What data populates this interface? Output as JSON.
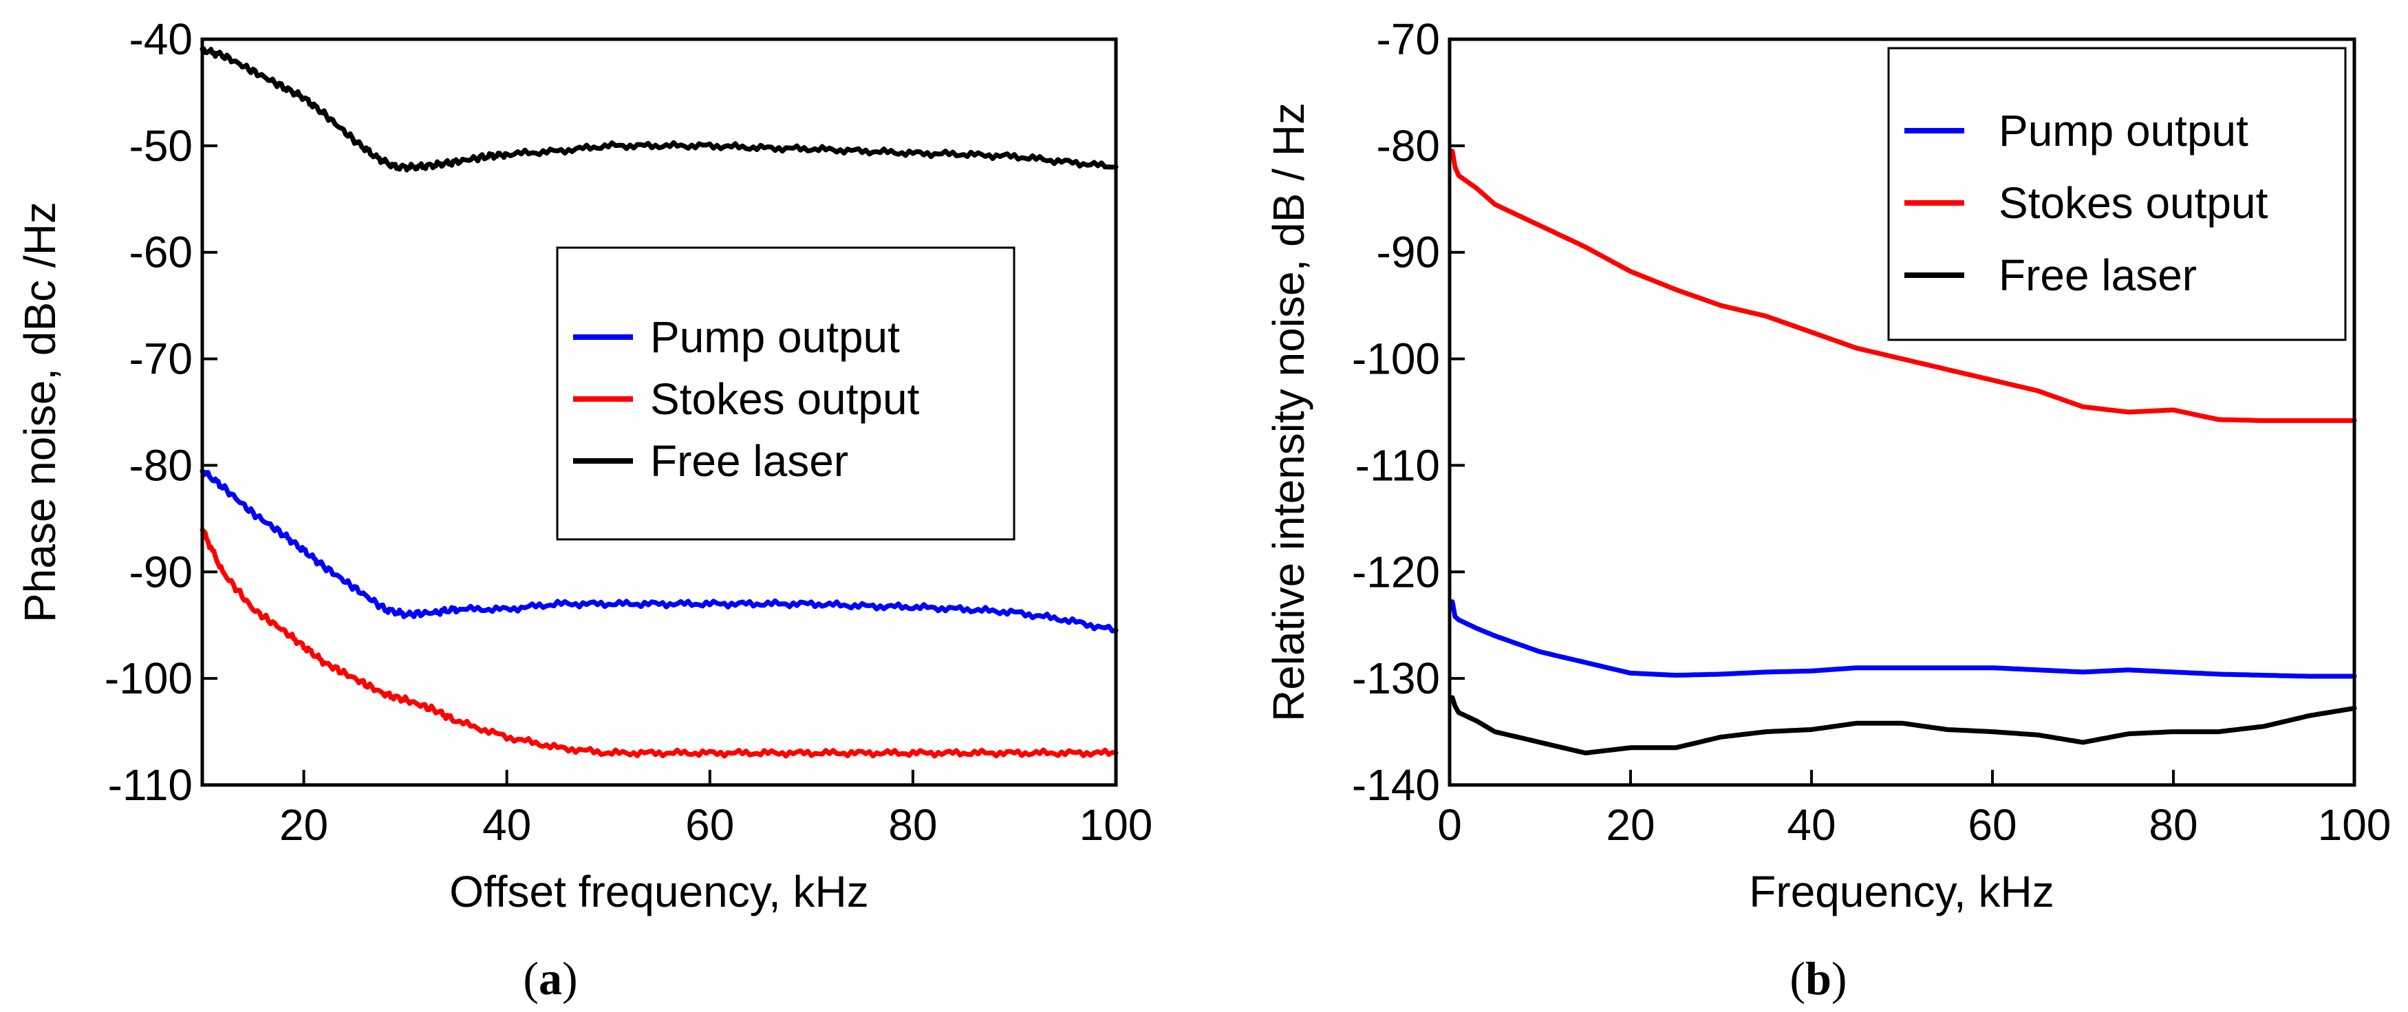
{
  "chart_data": [
    {
      "type": "line",
      "panel": "a",
      "caption_open": "(",
      "caption_letter": "a",
      "caption_close": ")",
      "xlabel": "Offset frequency, kHz",
      "ylabel": "Phase noise, dBc /Hz",
      "xlim": [
        10,
        100
      ],
      "ylim": [
        -110,
        -40
      ],
      "xticks": [
        20,
        40,
        60,
        80,
        100
      ],
      "yticks": [
        -40,
        -50,
        -60,
        -70,
        -80,
        -90,
        -100,
        -110
      ],
      "grid": false,
      "legend_position": "center-right",
      "series": [
        {
          "name": "Pump output",
          "color": "#0000ff",
          "x": [
            10,
            12,
            15,
            18,
            20,
            22,
            25,
            28,
            30,
            33,
            35,
            40,
            45,
            50,
            55,
            60,
            65,
            70,
            75,
            80,
            85,
            90,
            95,
            100
          ],
          "y": [
            -80.5,
            -82,
            -84.5,
            -86.5,
            -88,
            -89.5,
            -91.5,
            -93.5,
            -94,
            -93.8,
            -93.5,
            -93.5,
            -93,
            -93,
            -93,
            -93,
            -93,
            -93,
            -93.2,
            -93.3,
            -93.5,
            -93.8,
            -94.5,
            -95.5
          ]
        },
        {
          "name": "Stokes output",
          "color": "#ff0000",
          "x": [
            10,
            12,
            15,
            18,
            20,
            22,
            25,
            28,
            30,
            33,
            35,
            40,
            45,
            50,
            55,
            60,
            65,
            70,
            75,
            80,
            85,
            90,
            95,
            100
          ],
          "y": [
            -86,
            -90,
            -93.5,
            -95.5,
            -97,
            -98.5,
            -100,
            -101.5,
            -102,
            -103,
            -104,
            -105.5,
            -106.5,
            -107,
            -107,
            -107,
            -107,
            -107,
            -107,
            -107,
            -107,
            -107,
            -107,
            -107
          ]
        },
        {
          "name": "Free laser",
          "color": "#000000",
          "x": [
            10,
            12,
            15,
            18,
            20,
            22,
            25,
            27,
            29,
            31,
            33,
            35,
            38,
            40,
            45,
            50,
            55,
            60,
            65,
            70,
            75,
            80,
            85,
            90,
            95,
            100
          ],
          "y": [
            -41,
            -41.5,
            -43,
            -44.5,
            -45.5,
            -47,
            -49.5,
            -51,
            -52,
            -52,
            -51.8,
            -51.5,
            -51,
            -50.8,
            -50.5,
            -50,
            -50,
            -50,
            -50.2,
            -50.3,
            -50.5,
            -50.7,
            -50.8,
            -51,
            -51.5,
            -52
          ]
        }
      ]
    },
    {
      "type": "line",
      "panel": "b",
      "caption_open": "(",
      "caption_letter": "b",
      "caption_close": ")",
      "xlabel": "Frequency, kHz",
      "ylabel": "Relative intensity noise, dB / Hz",
      "xlim": [
        0,
        100
      ],
      "ylim": [
        -140,
        -70
      ],
      "xticks": [
        0,
        20,
        40,
        60,
        80,
        100
      ],
      "yticks": [
        -70,
        -80,
        -90,
        -100,
        -110,
        -120,
        -130,
        -140
      ],
      "grid": false,
      "legend_position": "top-right",
      "series": [
        {
          "name": "Pump output",
          "color": "#0000ff",
          "x": [
            0.3,
            0.6,
            1,
            3,
            5,
            10,
            15,
            20,
            25,
            30,
            35,
            40,
            45,
            50,
            55,
            60,
            65,
            70,
            75,
            80,
            85,
            90,
            95,
            100
          ],
          "y": [
            -122.8,
            -124.2,
            -124.5,
            -125.3,
            -126,
            -127.5,
            -128.5,
            -129.5,
            -129.7,
            -129.6,
            -129.4,
            -129.3,
            -129,
            -129,
            -129,
            -129,
            -129.2,
            -129.4,
            -129.2,
            -129.4,
            -129.6,
            -129.7,
            -129.8,
            -129.8
          ]
        },
        {
          "name": "Stokes output",
          "color": "#ff0000",
          "x": [
            0.3,
            0.6,
            1,
            3,
            5,
            10,
            15,
            20,
            25,
            30,
            35,
            40,
            45,
            50,
            55,
            60,
            65,
            70,
            75,
            80,
            85,
            90,
            95,
            100
          ],
          "y": [
            -80.5,
            -82,
            -82.8,
            -84,
            -85.5,
            -87.5,
            -89.5,
            -91.8,
            -93.5,
            -95,
            -96,
            -97.5,
            -99,
            -100,
            -101,
            -102,
            -103,
            -104.5,
            -105,
            -104.8,
            -105.7,
            -105.8,
            -105.8,
            -105.8
          ]
        },
        {
          "name": "Free laser",
          "color": "#000000",
          "x": [
            0.3,
            0.6,
            1,
            3,
            5,
            10,
            15,
            20,
            25,
            30,
            35,
            40,
            45,
            50,
            55,
            60,
            65,
            70,
            75,
            80,
            85,
            90,
            95,
            100
          ],
          "y": [
            -131.8,
            -132.6,
            -133.2,
            -134,
            -135,
            -136,
            -137,
            -136.5,
            -136.5,
            -135.5,
            -135,
            -134.8,
            -134.2,
            -134.2,
            -134.8,
            -135,
            -135.3,
            -136,
            -135.2,
            -135,
            -135,
            -134.5,
            -133.5,
            -132.8
          ]
        }
      ]
    }
  ]
}
